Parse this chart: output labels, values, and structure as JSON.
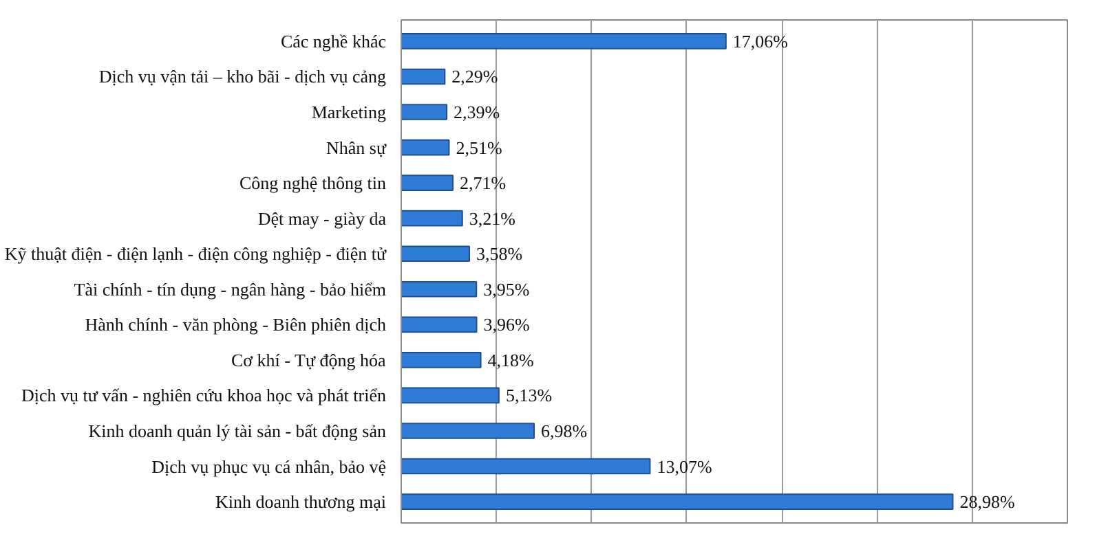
{
  "chart_data": {
    "type": "bar",
    "orientation": "horizontal",
    "categories": [
      "Các nghề khác",
      "Dịch vụ vận tải – kho bãi - dịch vụ cảng",
      "Marketing",
      "Nhân sự",
      "Công nghệ thông tin",
      "Dệt may - giày da",
      "Kỹ thuật điện - điện lạnh - điện công nghiệp - điện tử",
      "Tài chính - tín dụng - ngân hàng - bảo hiểm",
      "Hành chính - văn phòng - Biên phiên dịch",
      "Cơ khí - Tự động hóa",
      "Dịch vụ tư vấn - nghiên cứu khoa học và phát triển",
      "Kinh doanh quản lý tài sản - bất động sản",
      "Dịch vụ phục vụ cá nhân, bảo vệ",
      "Kinh doanh thương mại"
    ],
    "values": [
      17.06,
      2.29,
      2.39,
      2.51,
      2.71,
      3.21,
      3.58,
      3.95,
      3.96,
      4.18,
      5.13,
      6.98,
      13.07,
      28.98
    ],
    "value_labels": [
      "17,06%",
      "2,29%",
      "2,39%",
      "2,51%",
      "2,71%",
      "3,21%",
      "3,58%",
      "3,95%",
      "3,96%",
      "4,18%",
      "5,13%",
      "6,98%",
      "13,07%",
      "28,98%"
    ],
    "color": "#2f7bd8",
    "xlim": [
      0,
      35
    ],
    "xticks": [
      0,
      5,
      10,
      15,
      20,
      25,
      30,
      35
    ],
    "tick_labels": "y",
    "grid": "x"
  }
}
